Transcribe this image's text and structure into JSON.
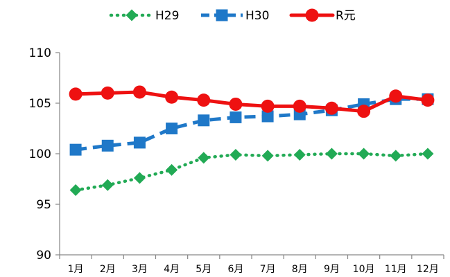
{
  "chart_data": {
    "type": "line",
    "categories": [
      "1月",
      "2月",
      "3月",
      "4月",
      "5月",
      "6月",
      "7月",
      "8月",
      "9月",
      "10月",
      "11月",
      "12月"
    ],
    "ylim": [
      90,
      110
    ],
    "yticks": [
      90,
      95,
      100,
      105,
      110
    ],
    "grid": false,
    "legend_position": "top",
    "series": [
      {
        "name": "H29",
        "color": "#22aa55",
        "marker": "diamond",
        "line": "dotted",
        "values": [
          96.4,
          96.9,
          97.6,
          98.4,
          99.6,
          99.9,
          99.8,
          99.9,
          100.0,
          100.0,
          99.8,
          100.0
        ]
      },
      {
        "name": "H30",
        "color": "#1f78c8",
        "marker": "square",
        "line": "dashed",
        "values": [
          100.4,
          100.8,
          101.1,
          102.5,
          103.3,
          103.6,
          103.7,
          103.9,
          104.3,
          104.9,
          105.4,
          105.4
        ]
      },
      {
        "name": "R元",
        "color": "#ee1111",
        "marker": "circle",
        "line": "solid",
        "values": [
          105.9,
          106.0,
          106.1,
          105.6,
          105.3,
          104.9,
          104.7,
          104.7,
          104.5,
          104.2,
          105.7,
          105.3
        ]
      }
    ]
  }
}
